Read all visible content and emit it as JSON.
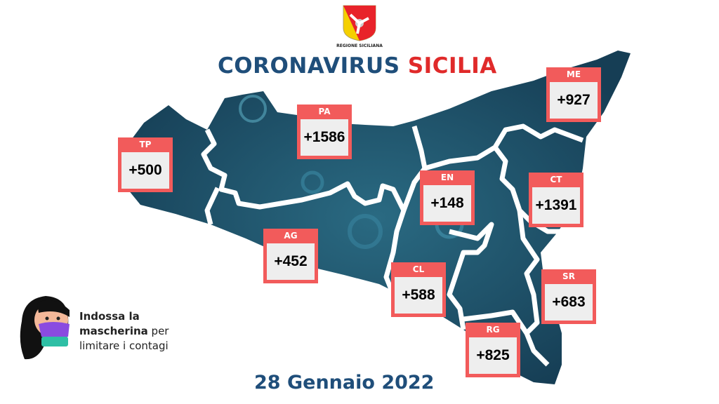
{
  "logo": {
    "text": "REGIONE SICILIANA"
  },
  "title": {
    "part1": "CORONAVIRUS",
    "part2": "SICILIA"
  },
  "provinces": [
    {
      "code": "TP",
      "value": "+500"
    },
    {
      "code": "PA",
      "value": "+1586"
    },
    {
      "code": "ME",
      "value": "+927"
    },
    {
      "code": "EN",
      "value": "+148"
    },
    {
      "code": "CT",
      "value": "+1391"
    },
    {
      "code": "AG",
      "value": "+452"
    },
    {
      "code": "CL",
      "value": "+588"
    },
    {
      "code": "SR",
      "value": "+683"
    },
    {
      "code": "RG",
      "value": "+825"
    }
  ],
  "message": {
    "bold1": "Indossa la",
    "bold2": "mascherina",
    "normal1": "per",
    "normal2": "limitare i contagi"
  },
  "date": "28 Gennaio 2022",
  "colors": {
    "title_blue": "#1f4e7a",
    "title_red": "#e02a2a",
    "box_red": "#f25b5b",
    "map": "#1d4a60"
  }
}
